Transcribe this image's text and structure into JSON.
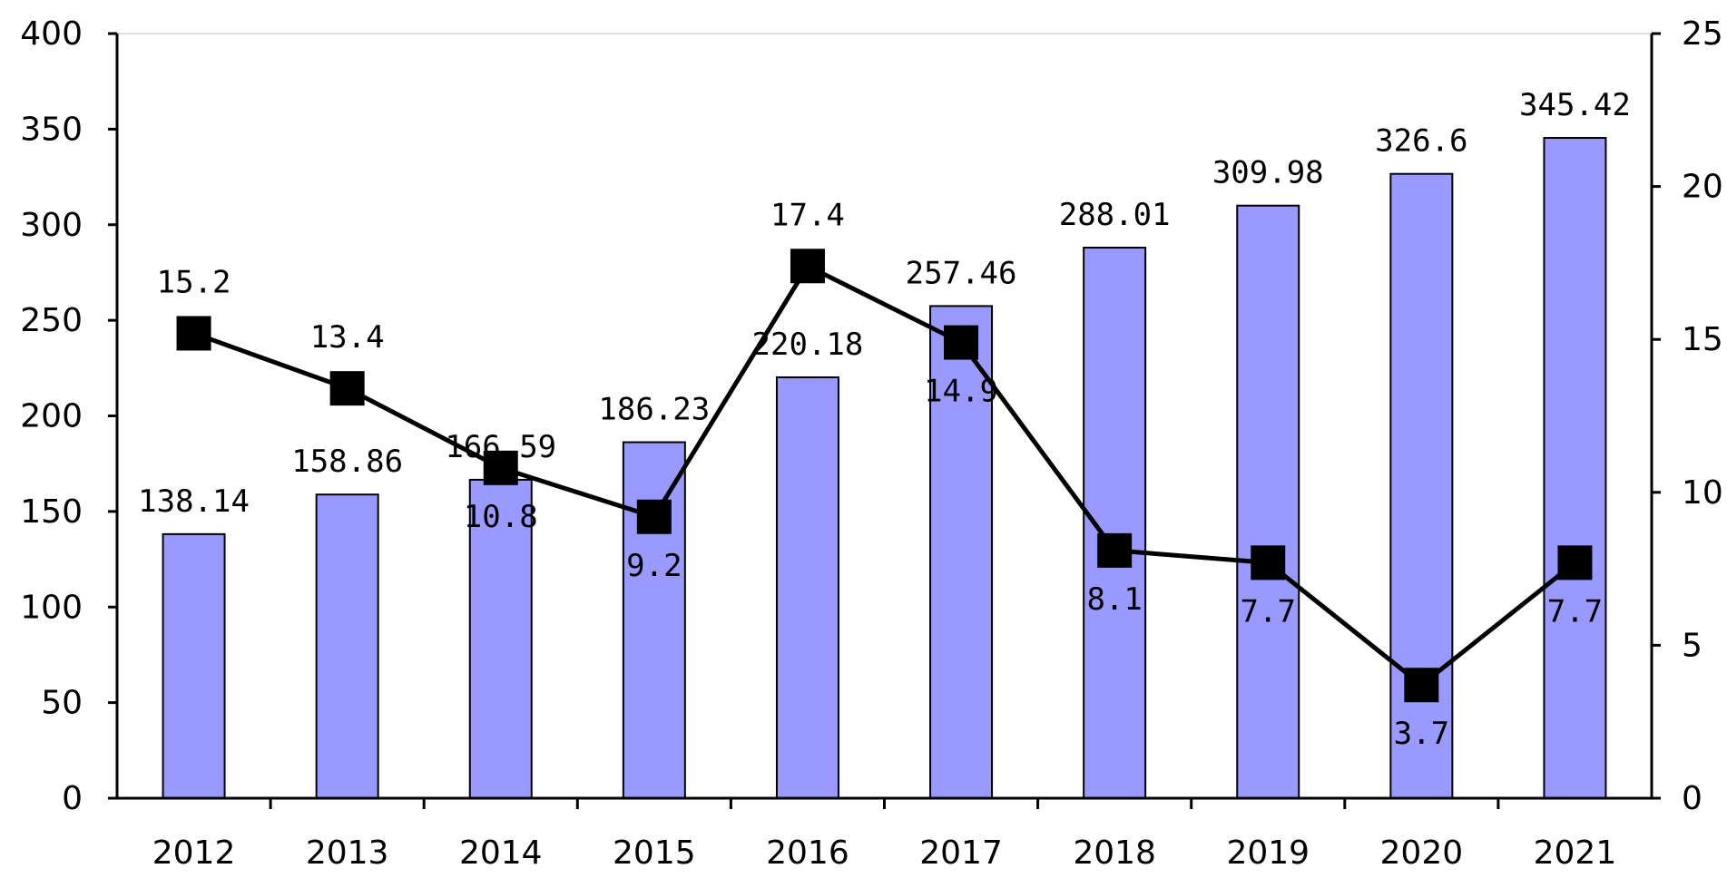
{
  "chart_data": {
    "type": "bar",
    "categories": [
      "2012",
      "2013",
      "2014",
      "2015",
      "2016",
      "2017",
      "2018",
      "2019",
      "2020",
      "2021"
    ],
    "series": [
      {
        "type": "bar",
        "axis": "left",
        "values": [
          138.14,
          158.86,
          166.59,
          186.23,
          220.18,
          257.46,
          288.01,
          309.98,
          326.6,
          345.42
        ],
        "labels": [
          "138.14",
          "158.86",
          "166.59",
          "186.23",
          "220.18",
          "257.46",
          "288.01",
          "309.98",
          "326.6",
          "345.42"
        ]
      },
      {
        "type": "line",
        "axis": "right",
        "values": [
          15.2,
          13.4,
          10.8,
          9.2,
          17.4,
          14.9,
          8.1,
          7.7,
          3.7,
          7.7
        ],
        "labels": [
          "15.2",
          "13.4",
          "10.8",
          "9.2",
          "17.4",
          "14.9",
          "8.1",
          "7.7",
          "3.7",
          "7.7"
        ]
      }
    ],
    "y_left": {
      "min": 0,
      "max": 400,
      "ticks": [
        "0",
        "50",
        "100",
        "150",
        "200",
        "250",
        "300",
        "350",
        "400"
      ]
    },
    "y_right": {
      "min": 0,
      "max": 25,
      "ticks": [
        "0",
        "5",
        "10",
        "15",
        "20",
        "25"
      ]
    },
    "grid": false,
    "legend": "none",
    "colors": {
      "bar": "#9999ff",
      "line": "#000000",
      "marker": "#000000"
    }
  }
}
